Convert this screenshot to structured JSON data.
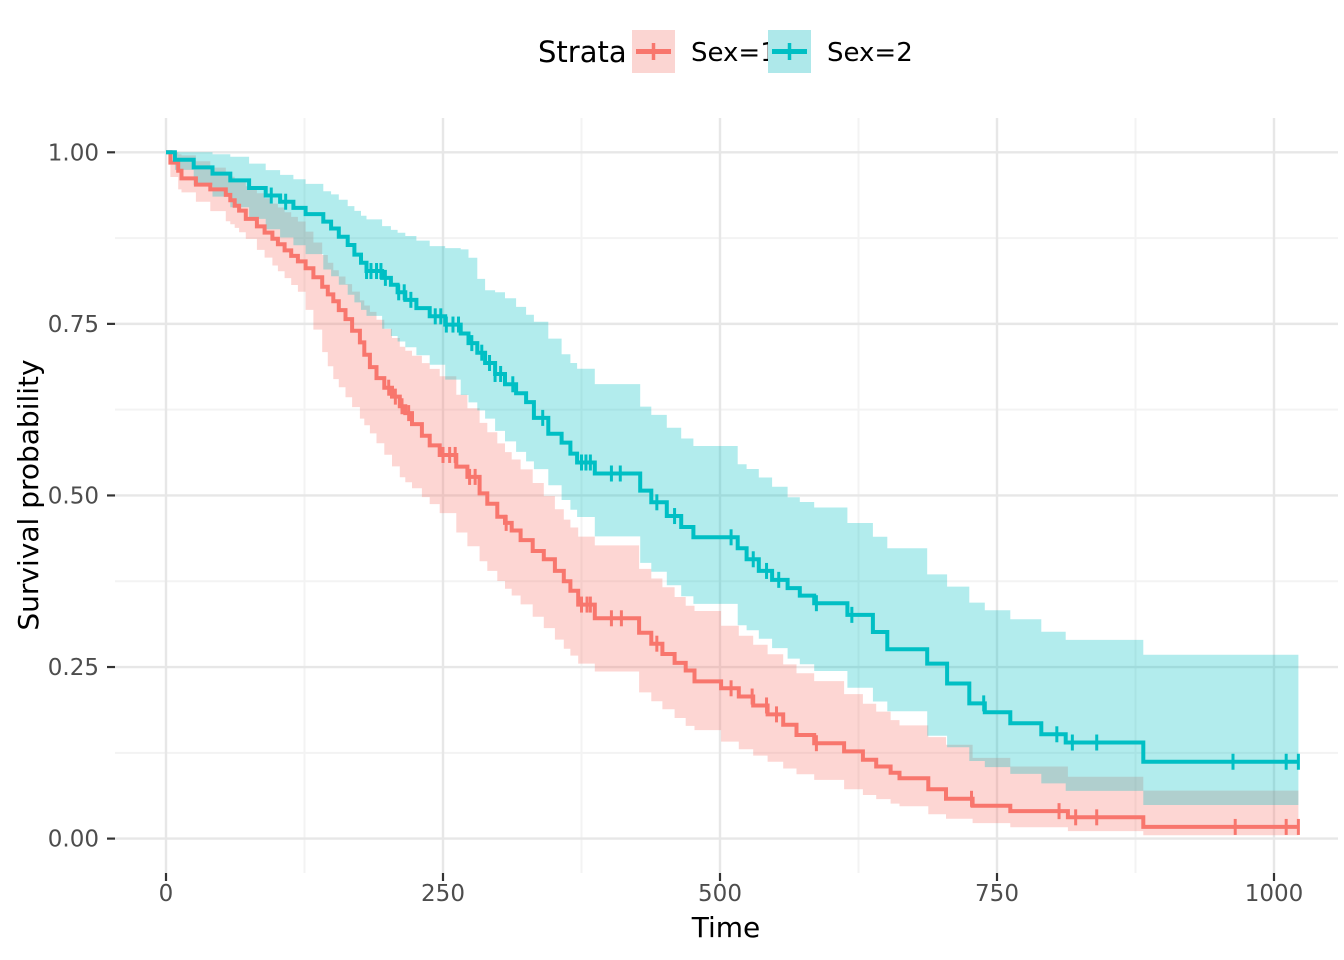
{
  "legend": {
    "title": "Strata",
    "items": [
      {
        "label": "Sex=1",
        "color": "#F8766D",
        "key_fill": "#FBD5D2"
      },
      {
        "label": "Sex=2",
        "color": "#00BFC4",
        "key_fill": "#AEE8EA"
      }
    ]
  },
  "axes": {
    "x": {
      "title": "Time",
      "tick_labels": [
        "0",
        "250",
        "500",
        "750",
        "1000"
      ]
    },
    "y": {
      "title": "Survival probability",
      "tick_labels": [
        "0.00",
        "0.25",
        "0.50",
        "0.75",
        "1.00"
      ]
    }
  },
  "style": {
    "grid_major_color": "#E7E7E7",
    "grid_minor_color": "#F3F3F3",
    "tick_color": "#333333",
    "tick_label_color": "#4D4D4D",
    "axis_title_color": "#000000",
    "ribbon_opacity": 0.3
  },
  "chart_data": {
    "type": "line",
    "subtype": "kaplan-meier-step",
    "xlabel": "Time",
    "ylabel": "Survival probability",
    "x_ticks": [
      0,
      250,
      500,
      750,
      1000
    ],
    "x_minor_ticks": [
      125,
      375,
      625,
      875
    ],
    "y_ticks": [
      0,
      0.25,
      0.5,
      0.75,
      1.0
    ],
    "y_minor_ticks": [
      0.125,
      0.375,
      0.625,
      0.875
    ],
    "xlim": [
      -46,
      1068
    ],
    "ylim": [
      -0.05,
      1.05
    ],
    "x_end": 1022,
    "grid": true,
    "legend_position": "top",
    "series": [
      {
        "name": "Sex=1",
        "color": "#F8766D",
        "steps": [
          [
            0,
            1.0
          ],
          [
            4,
            0.985
          ],
          [
            11,
            0.973
          ],
          [
            14,
            0.962
          ],
          [
            27,
            0.953
          ],
          [
            40,
            0.946
          ],
          [
            54,
            0.938
          ],
          [
            58,
            0.93
          ],
          [
            62,
            0.922
          ],
          [
            66,
            0.915
          ],
          [
            72,
            0.903
          ],
          [
            82,
            0.892
          ],
          [
            89,
            0.883
          ],
          [
            96,
            0.874
          ],
          [
            101,
            0.866
          ],
          [
            107,
            0.857
          ],
          [
            113,
            0.849
          ],
          [
            119,
            0.841
          ],
          [
            126,
            0.831
          ],
          [
            133,
            0.818
          ],
          [
            141,
            0.804
          ],
          [
            146,
            0.793
          ],
          [
            151,
            0.783
          ],
          [
            156,
            0.77
          ],
          [
            162,
            0.757
          ],
          [
            168,
            0.74
          ],
          [
            175,
            0.723
          ],
          [
            179,
            0.705
          ],
          [
            184,
            0.687
          ],
          [
            190,
            0.671
          ],
          [
            197,
            0.657
          ],
          [
            204,
            0.644
          ],
          [
            211,
            0.63
          ],
          [
            216,
            0.62
          ],
          [
            222,
            0.604
          ],
          [
            231,
            0.587
          ],
          [
            238,
            0.573
          ],
          [
            247,
            0.559
          ],
          [
            262,
            0.542
          ],
          [
            272,
            0.527
          ],
          [
            283,
            0.503
          ],
          [
            290,
            0.488
          ],
          [
            299,
            0.469
          ],
          [
            306,
            0.46
          ],
          [
            312,
            0.449
          ],
          [
            320,
            0.435
          ],
          [
            331,
            0.419
          ],
          [
            341,
            0.407
          ],
          [
            351,
            0.39
          ],
          [
            359,
            0.375
          ],
          [
            365,
            0.361
          ],
          [
            372,
            0.341
          ],
          [
            387,
            0.321
          ],
          [
            427,
            0.3
          ],
          [
            438,
            0.284
          ],
          [
            448,
            0.269
          ],
          [
            459,
            0.256
          ],
          [
            469,
            0.245
          ],
          [
            477,
            0.229
          ],
          [
            501,
            0.219
          ],
          [
            517,
            0.207
          ],
          [
            530,
            0.194
          ],
          [
            543,
            0.181
          ],
          [
            557,
            0.166
          ],
          [
            569,
            0.151
          ],
          [
            585,
            0.139
          ],
          [
            612,
            0.127
          ],
          [
            629,
            0.115
          ],
          [
            641,
            0.105
          ],
          [
            654,
            0.096
          ],
          [
            662,
            0.088
          ],
          [
            688,
            0.072
          ],
          [
            704,
            0.058
          ],
          [
            728,
            0.048
          ],
          [
            762,
            0.04
          ],
          [
            814,
            0.031
          ],
          [
            882,
            0.017
          ]
        ],
        "censor_times": [
          201,
          207,
          213,
          219,
          250,
          256,
          261,
          274,
          279,
          307,
          375,
          380,
          383,
          402,
          411,
          443,
          510,
          529,
          542,
          551,
          587,
          727,
          806,
          821,
          840,
          965,
          1011,
          1022
        ],
        "ci": [
          [
            0,
            1,
            1
          ],
          [
            5,
            0.955,
            1
          ],
          [
            15,
            0.94,
            0.995
          ],
          [
            30,
            0.925,
            0.985
          ],
          [
            60,
            0.893,
            0.963
          ],
          [
            90,
            0.845,
            0.932
          ],
          [
            120,
            0.795,
            0.898
          ],
          [
            150,
            0.672,
            0.83
          ],
          [
            180,
            0.6,
            0.775
          ],
          [
            210,
            0.528,
            0.718
          ],
          [
            250,
            0.47,
            0.67
          ],
          [
            290,
            0.39,
            0.592
          ],
          [
            330,
            0.325,
            0.52
          ],
          [
            372,
            0.255,
            0.44
          ],
          [
            427,
            0.213,
            0.393
          ],
          [
            470,
            0.163,
            0.338
          ],
          [
            520,
            0.128,
            0.293
          ],
          [
            570,
            0.093,
            0.24
          ],
          [
            620,
            0.068,
            0.205
          ],
          [
            662,
            0.047,
            0.165
          ],
          [
            700,
            0.03,
            0.14
          ],
          [
            730,
            0.022,
            0.116
          ],
          [
            765,
            0.016,
            0.104
          ],
          [
            814,
            0.011,
            0.09
          ],
          [
            882,
            0.005,
            0.07
          ],
          [
            1022,
            0.005,
            0.07
          ]
        ]
      },
      {
        "name": "Sex=2",
        "color": "#00BFC4",
        "steps": [
          [
            0,
            1.0
          ],
          [
            8,
            0.989
          ],
          [
            25,
            0.978
          ],
          [
            42,
            0.969
          ],
          [
            58,
            0.959
          ],
          [
            75,
            0.948
          ],
          [
            90,
            0.937
          ],
          [
            103,
            0.928
          ],
          [
            115,
            0.919
          ],
          [
            126,
            0.91
          ],
          [
            142,
            0.899
          ],
          [
            149,
            0.889
          ],
          [
            156,
            0.877
          ],
          [
            164,
            0.865
          ],
          [
            170,
            0.851
          ],
          [
            176,
            0.839
          ],
          [
            181,
            0.827
          ],
          [
            195,
            0.817
          ],
          [
            203,
            0.807
          ],
          [
            209,
            0.796
          ],
          [
            216,
            0.785
          ],
          [
            226,
            0.773
          ],
          [
            238,
            0.761
          ],
          [
            252,
            0.749
          ],
          [
            266,
            0.736
          ],
          [
            273,
            0.722
          ],
          [
            281,
            0.708
          ],
          [
            288,
            0.693
          ],
          [
            297,
            0.677
          ],
          [
            306,
            0.662
          ],
          [
            316,
            0.649
          ],
          [
            325,
            0.636
          ],
          [
            332,
            0.613
          ],
          [
            345,
            0.59
          ],
          [
            357,
            0.577
          ],
          [
            365,
            0.561
          ],
          [
            371,
            0.548
          ],
          [
            387,
            0.532
          ],
          [
            428,
            0.507
          ],
          [
            438,
            0.49
          ],
          [
            452,
            0.47
          ],
          [
            465,
            0.454
          ],
          [
            476,
            0.439
          ],
          [
            516,
            0.423
          ],
          [
            524,
            0.407
          ],
          [
            535,
            0.39
          ],
          [
            547,
            0.377
          ],
          [
            561,
            0.365
          ],
          [
            572,
            0.354
          ],
          [
            585,
            0.343
          ],
          [
            615,
            0.326
          ],
          [
            638,
            0.301
          ],
          [
            651,
            0.276
          ],
          [
            687,
            0.255
          ],
          [
            705,
            0.226
          ],
          [
            725,
            0.197
          ],
          [
            739,
            0.184
          ],
          [
            762,
            0.168
          ],
          [
            790,
            0.152
          ],
          [
            812,
            0.14
          ],
          [
            882,
            0.112
          ]
        ],
        "censor_times": [
          95,
          108,
          181,
          185,
          190,
          194,
          198,
          210,
          215,
          221,
          243,
          248,
          253,
          259,
          264,
          276,
          285,
          292,
          297,
          302,
          313,
          340,
          375,
          379,
          383,
          402,
          410,
          443,
          459,
          510,
          530,
          542,
          553,
          587,
          619,
          738,
          804,
          818,
          840,
          963,
          1011,
          1022
        ],
        "ci": [
          [
            0,
            1,
            1
          ],
          [
            10,
            0.968,
            1
          ],
          [
            30,
            0.947,
            1
          ],
          [
            60,
            0.918,
            0.993
          ],
          [
            90,
            0.888,
            0.974
          ],
          [
            120,
            0.86,
            0.958
          ],
          [
            150,
            0.818,
            0.938
          ],
          [
            180,
            0.763,
            0.903
          ],
          [
            210,
            0.723,
            0.882
          ],
          [
            240,
            0.688,
            0.862
          ],
          [
            270,
            0.64,
            0.858
          ],
          [
            285,
            0.618,
            0.8
          ],
          [
            300,
            0.588,
            0.795
          ],
          [
            330,
            0.542,
            0.757
          ],
          [
            360,
            0.488,
            0.7
          ],
          [
            390,
            0.435,
            0.658
          ],
          [
            430,
            0.4,
            0.628
          ],
          [
            460,
            0.358,
            0.588
          ],
          [
            480,
            0.338,
            0.568
          ],
          [
            520,
            0.308,
            0.543
          ],
          [
            560,
            0.263,
            0.498
          ],
          [
            600,
            0.233,
            0.473
          ],
          [
            640,
            0.198,
            0.438
          ],
          [
            662,
            0.173,
            0.408
          ],
          [
            700,
            0.138,
            0.373
          ],
          [
            730,
            0.108,
            0.338
          ],
          [
            765,
            0.093,
            0.318
          ],
          [
            795,
            0.078,
            0.298
          ],
          [
            815,
            0.068,
            0.288
          ],
          [
            882,
            0.049,
            0.268
          ],
          [
            1022,
            0.049,
            0.268
          ]
        ]
      }
    ]
  }
}
